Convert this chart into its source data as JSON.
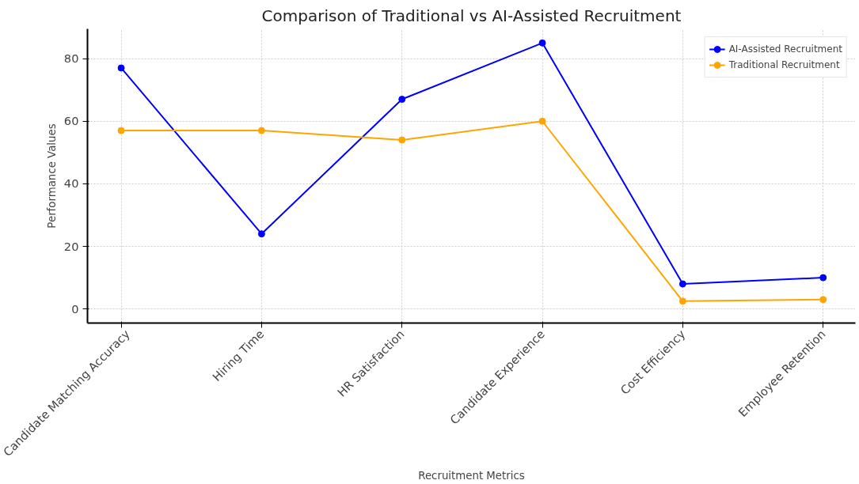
{
  "chart_data": {
    "type": "line",
    "title": "Comparison of Traditional vs AI-Assisted Recruitment",
    "xlabel": "Recruitment Metrics",
    "ylabel": "Performance Values",
    "categories": [
      "Candidate Matching Accuracy",
      "Hiring Time",
      "HR Satisfaction",
      "Candidate Experience",
      "Cost Efficiency",
      "Employee Retention"
    ],
    "series": [
      {
        "name": "AI-Assisted Recruitment",
        "color": "#0000ff",
        "values": [
          77,
          24,
          67,
          85,
          8,
          10
        ]
      },
      {
        "name": "Traditional Recruitment",
        "color": "#ffa500",
        "values": [
          57,
          57,
          54,
          60,
          2.5,
          3
        ]
      }
    ],
    "ylim": [
      -4.5,
      89.5
    ],
    "yticks": [
      0,
      20,
      40,
      60,
      80
    ],
    "grid": true,
    "legend": "top right",
    "marker": "circle",
    "line_style": "solid"
  }
}
